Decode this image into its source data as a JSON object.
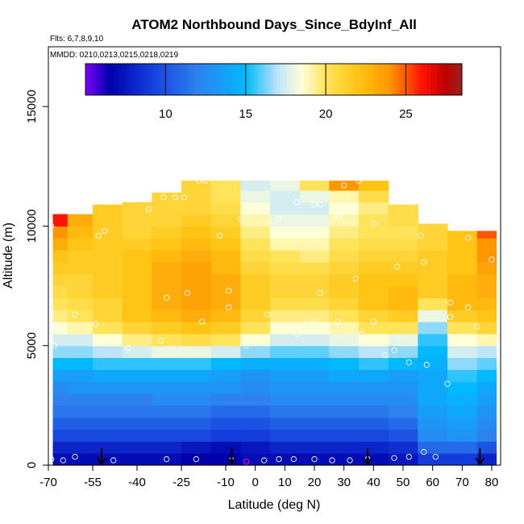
{
  "chart_data": {
    "type": "heatmap",
    "title": "ATOM2 Northbound Days_Since_BdyInf_All",
    "flights_note": "Flts: 6,7,8,9,10",
    "dates_note": "MMDD: 0210,0213,0215,0218,0219",
    "xlabel": "Latitude (deg N)",
    "ylabel": "Altitude (m)",
    "xlim": [
      -70,
      83
    ],
    "ylim": [
      0,
      17500
    ],
    "x_ticks": [
      -70,
      -55,
      -40,
      -25,
      -10,
      0,
      10,
      20,
      30,
      40,
      50,
      60,
      70,
      80
    ],
    "x_tick_labels": [
      "-70",
      "-55",
      "-40",
      "-25",
      "-10",
      "0",
      "10",
      "20",
      "30",
      "40",
      "50",
      "60",
      "70",
      "80"
    ],
    "y_ticks": [
      0,
      5000,
      10000,
      15000
    ],
    "y_tick_labels": [
      "0",
      "5000",
      "10000",
      "15000"
    ],
    "colorbar": {
      "range": [
        5,
        28.5
      ],
      "ticks": [
        10,
        15,
        20,
        25
      ],
      "tick_labels": [
        "10",
        "15",
        "20",
        "25"
      ]
    },
    "lat_bins": [
      -67,
      -60,
      -50,
      -40,
      -30,
      -20,
      -10,
      0,
      10,
      20,
      30,
      40,
      50,
      60,
      70,
      80
    ],
    "altitude_bins": [
      250,
      750,
      1250,
      1750,
      2250,
      2750,
      3250,
      3750,
      4250,
      4750,
      5250,
      5750,
      6250,
      6750,
      7250,
      7750,
      8250,
      8750,
      9250,
      9750,
      10250,
      10750,
      11250,
      11750
    ],
    "coverage_top_m": [
      10500,
      10500,
      10900,
      11000,
      11400,
      11900,
      11900,
      11900,
      11900,
      11900,
      11900,
      11900,
      10900,
      10100,
      9800,
      9800
    ],
    "series": [
      {
        "name": "250 m",
        "values": [
          7,
          7,
          7,
          7,
          7,
          6.5,
          6.5,
          7,
          7,
          7,
          7,
          7,
          7.5,
          9,
          9,
          8
        ]
      },
      {
        "name": "750 m",
        "values": [
          8,
          8,
          8,
          8,
          8,
          7.5,
          7,
          7.5,
          8,
          8,
          8,
          8,
          8.5,
          11,
          11,
          10
        ]
      },
      {
        "name": "1250 m",
        "values": [
          9.5,
          9.5,
          9.5,
          9.5,
          9.5,
          9.5,
          9,
          9,
          9.5,
          9.5,
          9.5,
          9.5,
          10,
          12.5,
          13,
          12
        ]
      },
      {
        "name": "1750 m",
        "values": [
          10.5,
          10.5,
          10.5,
          10.5,
          10.5,
          10.5,
          10,
          10,
          10.5,
          10.5,
          10.5,
          10.5,
          11,
          13,
          13.5,
          12.5
        ]
      },
      {
        "name": "2250 m",
        "values": [
          11.5,
          11.5,
          11.5,
          11.5,
          11.5,
          11.5,
          11,
          11,
          11.5,
          11.5,
          11.5,
          11.5,
          12,
          13.5,
          14,
          13
        ]
      },
      {
        "name": "2750 m",
        "values": [
          12,
          12,
          12,
          12,
          12.5,
          12.5,
          12,
          12,
          12.5,
          12.5,
          12.5,
          12.5,
          12.5,
          14,
          14.5,
          13.5
        ]
      },
      {
        "name": "3250 m",
        "values": [
          12.5,
          13,
          13,
          13,
          13,
          13,
          13,
          12.5,
          13,
          13,
          13,
          13,
          13,
          14,
          15,
          14
        ]
      },
      {
        "name": "3750 m",
        "values": [
          13.5,
          13.5,
          14,
          14,
          14,
          14,
          13.5,
          13,
          13.5,
          13.5,
          14,
          14,
          13.5,
          14,
          15.5,
          15
        ]
      },
      {
        "name": "4250 m",
        "values": [
          15,
          15,
          15.5,
          15.5,
          15.5,
          15.5,
          15,
          14.5,
          14.5,
          14.5,
          15,
          15.5,
          15,
          14.5,
          16.5,
          16
        ]
      },
      {
        "name": "4750 m",
        "values": [
          16.5,
          16.5,
          17,
          17.5,
          18,
          18,
          17.5,
          16.5,
          16,
          16,
          16.5,
          17,
          16.5,
          15,
          17.5,
          17
        ]
      },
      {
        "name": "5250 m",
        "values": [
          17.5,
          17.5,
          18.5,
          19.5,
          20,
          20.5,
          20,
          18.5,
          17.5,
          17.5,
          18,
          18.5,
          18,
          15.5,
          18.5,
          19
        ]
      },
      {
        "name": "5750 m",
        "values": [
          18.5,
          19,
          20,
          21,
          21.5,
          22,
          21.5,
          20,
          18.5,
          18.5,
          19,
          20,
          20,
          16.5,
          20,
          21
        ]
      },
      {
        "name": "6250 m",
        "values": [
          19.5,
          20,
          21,
          22,
          22.5,
          23,
          22.5,
          21,
          19.5,
          19.5,
          20,
          21,
          21.5,
          18,
          21.5,
          22
        ]
      },
      {
        "name": "6750 m",
        "values": [
          20,
          20.5,
          21,
          22,
          23,
          23.5,
          23,
          21.5,
          20.5,
          20.5,
          21,
          22,
          22.5,
          20,
          22.5,
          22.5
        ]
      },
      {
        "name": "7250 m",
        "values": [
          20.5,
          21,
          21.5,
          22,
          23,
          23.5,
          23,
          21.5,
          21,
          21,
          21.5,
          22,
          22.5,
          21.5,
          22.5,
          23
        ]
      },
      {
        "name": "7750 m",
        "values": [
          21,
          21,
          21.5,
          22,
          23,
          23.5,
          23,
          21.5,
          21,
          21,
          21.5,
          22,
          22,
          21.5,
          22.5,
          23
        ]
      },
      {
        "name": "8250 m",
        "values": [
          21.5,
          21.5,
          21.5,
          22,
          23,
          23.5,
          22.5,
          21,
          20.5,
          20.5,
          21,
          21.5,
          21.5,
          21.5,
          22,
          23.5
        ]
      },
      {
        "name": "8750 m",
        "values": [
          22,
          21.5,
          21.5,
          22,
          22.5,
          23,
          22.5,
          20.5,
          20,
          19.5,
          20.5,
          21,
          21,
          21.5,
          22,
          24
        ]
      },
      {
        "name": "9250 m",
        "values": [
          23,
          22,
          21.5,
          21.5,
          22,
          22.5,
          22,
          20,
          19,
          19,
          20,
          20.5,
          20.5,
          21,
          22,
          24
        ]
      },
      {
        "name": "9750 m",
        "values": [
          24,
          22.5,
          21.5,
          21,
          21.5,
          22,
          21.5,
          19.5,
          18.5,
          18.5,
          19.5,
          20,
          20,
          21,
          22,
          25
        ]
      },
      {
        "name": "10250 m",
        "values": [
          26,
          23,
          21.5,
          21,
          21,
          21.5,
          21,
          19,
          18,
          18,
          19,
          20,
          20.5,
          21,
          null,
          null
        ]
      },
      {
        "name": "10750 m",
        "values": [
          null,
          null,
          21.5,
          21,
          21,
          21,
          20.5,
          18.5,
          17.5,
          17.5,
          18.5,
          19.5,
          20.5,
          null,
          null,
          null
        ]
      },
      {
        "name": "11250 m",
        "values": [
          null,
          null,
          null,
          null,
          21,
          21,
          20,
          18,
          17.5,
          18,
          19,
          20.5,
          null,
          null,
          null,
          null
        ]
      },
      {
        "name": "11750 m",
        "values": [
          null,
          null,
          null,
          null,
          null,
          21,
          20,
          17.5,
          18,
          20,
          24,
          22,
          null,
          null,
          null,
          null
        ]
      }
    ],
    "sample_points": [
      {
        "lat": -69,
        "alt": 250
      },
      {
        "lat": -65,
        "alt": 200
      },
      {
        "lat": -61,
        "alt": 350
      },
      {
        "lat": -48,
        "alt": 200
      },
      {
        "lat": -30,
        "alt": 250
      },
      {
        "lat": -20,
        "alt": 250
      },
      {
        "lat": -8,
        "alt": 200
      },
      {
        "lat": -3,
        "alt": 150
      },
      {
        "lat": 3,
        "alt": 200
      },
      {
        "lat": 8,
        "alt": 250
      },
      {
        "lat": 13,
        "alt": 250
      },
      {
        "lat": 20,
        "alt": 250
      },
      {
        "lat": 26,
        "alt": 200
      },
      {
        "lat": 32,
        "alt": 200
      },
      {
        "lat": 38,
        "alt": 250
      },
      {
        "lat": 47,
        "alt": 300
      },
      {
        "lat": 52,
        "alt": 350
      },
      {
        "lat": 57,
        "alt": 550
      },
      {
        "lat": 61,
        "alt": 350
      },
      {
        "lat": 65,
        "alt": 3400
      },
      {
        "lat": 58,
        "alt": 4200
      },
      {
        "lat": 52,
        "alt": 4300
      },
      {
        "lat": 47,
        "alt": 4800
      },
      {
        "lat": 44,
        "alt": 4600
      },
      {
        "lat": 36,
        "alt": 5500
      },
      {
        "lat": 40,
        "alt": 6000
      },
      {
        "lat": 28,
        "alt": 6000
      },
      {
        "lat": 20,
        "alt": 6000
      },
      {
        "lat": 14,
        "alt": 5500
      },
      {
        "lat": 4,
        "alt": 6300
      },
      {
        "lat": -3,
        "alt": 5000
      },
      {
        "lat": -9,
        "alt": 6600
      },
      {
        "lat": -18,
        "alt": 6000
      },
      {
        "lat": -32,
        "alt": 5200
      },
      {
        "lat": -43,
        "alt": 4900
      },
      {
        "lat": -54,
        "alt": 5900
      },
      {
        "lat": -61,
        "alt": 6300
      },
      {
        "lat": -68,
        "alt": 5000
      },
      {
        "lat": -23,
        "alt": 7200
      },
      {
        "lat": -9,
        "alt": 7300
      },
      {
        "lat": -30,
        "alt": 7000
      },
      {
        "lat": 22,
        "alt": 7200
      },
      {
        "lat": 34,
        "alt": 7800
      },
      {
        "lat": 48,
        "alt": 8300
      },
      {
        "lat": 57,
        "alt": 8500
      },
      {
        "lat": 66,
        "alt": 6800
      },
      {
        "lat": 72,
        "alt": 6600
      },
      {
        "lat": 66,
        "alt": 6200
      },
      {
        "lat": 75,
        "alt": 5800
      },
      {
        "lat": 80,
        "alt": 8600
      },
      {
        "lat": 72,
        "alt": 9500
      },
      {
        "lat": 56,
        "alt": 9600
      },
      {
        "lat": 40,
        "alt": 10100
      },
      {
        "lat": 28,
        "alt": 10400
      },
      {
        "lat": 8,
        "alt": 10300
      },
      {
        "lat": -5,
        "alt": 10300
      },
      {
        "lat": -12,
        "alt": 9600
      },
      {
        "lat": -53,
        "alt": 9600
      },
      {
        "lat": -51,
        "alt": 9800
      },
      {
        "lat": -69,
        "alt": 10000
      },
      {
        "lat": -36,
        "alt": 10700
      },
      {
        "lat": -31,
        "alt": 11200
      },
      {
        "lat": -27,
        "alt": 11200
      },
      {
        "lat": -24,
        "alt": 11200
      },
      {
        "lat": -19,
        "alt": 11900
      },
      {
        "lat": -17,
        "alt": 11900
      },
      {
        "lat": 14,
        "alt": 11000
      },
      {
        "lat": 20,
        "alt": 10900
      },
      {
        "lat": 22,
        "alt": 10900
      },
      {
        "lat": 30,
        "alt": 11700
      },
      {
        "lat": 35,
        "alt": 11900
      }
    ],
    "sample_points_magenta": [
      {
        "lat": -3,
        "alt": 150
      }
    ],
    "arrows_at_lat": [
      -52,
      -8,
      38,
      76
    ]
  }
}
